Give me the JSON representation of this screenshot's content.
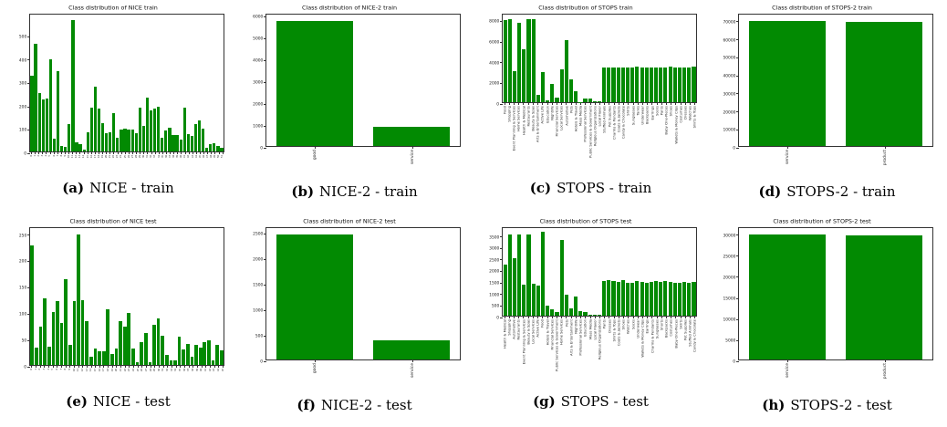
{
  "colors": {
    "bar_fill": "#028a02",
    "axis": "#333333",
    "background": "#ffffff"
  },
  "captions": [
    {
      "label": "(a)",
      "text": "NICE - train"
    },
    {
      "label": "(b)",
      "text": "NICE-2 - train"
    },
    {
      "label": "(c)",
      "text": "STOPS - train"
    },
    {
      "label": "(d)",
      "text": "STOPS-2 - train"
    },
    {
      "label": "(e)",
      "text": "NICE - test"
    },
    {
      "label": "(f)",
      "text": "NICE-2 - test"
    },
    {
      "label": "(g)",
      "text": "STOPS - test"
    },
    {
      "label": "(h)",
      "text": "STOPS-2 - test"
    }
  ],
  "chart_data": [
    {
      "type": "bar",
      "title": "Class distribution of NICE train",
      "categories": [],
      "xtick_labels_legible": false,
      "values": [
        330,
        470,
        255,
        225,
        230,
        400,
        55,
        350,
        25,
        20,
        118,
        570,
        40,
        30,
        8,
        85,
        190,
        280,
        185,
        125,
        78,
        85,
        165,
        60,
        95,
        100,
        97,
        95,
        80,
        190,
        110,
        235,
        180,
        185,
        195,
        60,
        90,
        105,
        72,
        70,
        50,
        190,
        75,
        68,
        118,
        135,
        100,
        15,
        30,
        35,
        25,
        15
      ],
      "yticks": [
        0,
        100,
        200,
        300,
        400,
        500
      ],
      "ylim": [
        0,
        595
      ],
      "grid": false,
      "legend": null
    },
    {
      "type": "bar",
      "title": "Class distribution of NICE-2 train",
      "categories": [
        "good",
        "service"
      ],
      "xtick_labels_legible": true,
      "values": [
        5800,
        880
      ],
      "yticks": [
        0,
        1000,
        2000,
        3000,
        4000,
        5000,
        6000
      ],
      "ylim": [
        0,
        6100
      ],
      "grid": false,
      "legend": null
    },
    {
      "type": "bar",
      "title": "Class distribution of STOPS train",
      "categories": [
        "Food",
        "Shopping",
        "Event Planning & Services",
        "Home Services",
        "Health & Medical",
        "Restaurants",
        "Beauty & Spas",
        "Arts & Entertainment",
        "Active Life",
        "Education",
        "Nightlife",
        "Financial Services",
        "Local Services",
        "Automotive",
        "Pets",
        "Hotels & Travel",
        "Mass Media",
        "Professional Services",
        "Public Services & Government",
        "Religious Organizations",
        "Local Flavor",
        "Stuffed Animals",
        "Pet Supplies",
        "Charms & Pendants",
        "Coats & Jackets",
        "Candy & Chocolate",
        "Shirts",
        "Sunglasses",
        "Tanks",
        "Underwear",
        "Backpacks",
        "Earrings",
        "Socks",
        "Pants",
        "Baby One-Pieces",
        "Shoes",
        "Wallets & Money Clips",
        "Costumes",
        "Dresses",
        "Watches",
        "Shirts & Tops"
      ],
      "xtick_labels_legible": true,
      "values": [
        8100,
        8200,
        3050,
        7800,
        5200,
        8200,
        8200,
        700,
        2950,
        200,
        1800,
        470,
        3250,
        6100,
        2250,
        1100,
        30,
        380,
        330,
        120,
        60,
        3460,
        3450,
        3470,
        3460,
        3450,
        3470,
        3460,
        3500,
        3450,
        3470,
        3460,
        3450,
        3470,
        3460,
        3480,
        3450,
        3460,
        3470,
        3450,
        3480
      ],
      "yticks": [
        0,
        2000,
        4000,
        6000,
        8000
      ],
      "ylim": [
        0,
        8650
      ],
      "grid": false,
      "legend": null
    },
    {
      "type": "bar",
      "title": "Class distribution of STOPS-2 train",
      "categories": [
        "service",
        "product"
      ],
      "xtick_labels_legible": true,
      "values": [
        70400,
        70100
      ],
      "yticks": [
        0,
        10000,
        20000,
        30000,
        40000,
        50000,
        60000,
        70000
      ],
      "ylim": [
        0,
        74000
      ],
      "grid": false,
      "legend": null
    },
    {
      "type": "bar",
      "title": "Class distribution of NICE test",
      "categories": [],
      "xtick_labels_legible": false,
      "values": [
        230,
        34,
        73,
        128,
        35,
        101,
        123,
        80,
        165,
        38,
        123,
        251,
        125,
        85,
        15,
        32,
        27,
        26,
        107,
        21,
        31,
        84,
        73,
        100,
        32,
        6,
        44,
        62,
        5,
        78,
        90,
        56,
        20,
        8,
        9,
        54,
        29,
        41,
        15,
        39,
        34,
        43,
        47,
        8,
        38,
        28
      ],
      "yticks": [
        0,
        50,
        100,
        150,
        200,
        250
      ],
      "ylim": [
        0,
        263
      ],
      "grid": false,
      "legend": null
    },
    {
      "type": "bar",
      "title": "Class distribution of NICE-2 test",
      "categories": [
        "good",
        "service"
      ],
      "xtick_labels_legible": true,
      "values": [
        2490,
        380
      ],
      "yticks": [
        0,
        500,
        1000,
        1500,
        2000,
        2500
      ],
      "ylim": [
        0,
        2615
      ],
      "grid": false,
      "legend": null
    },
    {
      "type": "bar",
      "title": "Class distribution of STOPS test",
      "categories": [
        "Health & Medical",
        "Shopping",
        "Automotive",
        "Restaurants",
        "Event Planning & Services",
        "Beauty & Spas",
        "Local Services",
        "Active Life",
        "Food",
        "Hotels & Travel",
        "Financial Services",
        "Public Services & Government",
        "Home Services",
        "Pets",
        "Arts & Entertainment",
        "Nightlife",
        "Professional Services",
        "Education",
        "Mass Media",
        "Local Flavor",
        "Religious Organizations",
        "Pants",
        "Dresses",
        "Shirts & Tops",
        "Coats & Jackets",
        "Shoes",
        "Watches",
        "Socks",
        "Underwear",
        "Wallets & Money Clips",
        "Earrings",
        "Charms & Pendants",
        "Sunglasses",
        "Shorts",
        "Backpacks",
        "Costumes",
        "Baby One-Pieces",
        "Skirts",
        "Pet Supplies",
        "Stuffed Animals",
        "Candy & Chocolate"
      ],
      "xtick_labels_legible": true,
      "values": [
        2250,
        3600,
        2550,
        3580,
        1375,
        3580,
        1400,
        1330,
        3700,
        430,
        300,
        180,
        3350,
        950,
        330,
        850,
        190,
        150,
        60,
        50,
        60,
        1520,
        1560,
        1540,
        1500,
        1580,
        1440,
        1450,
        1530,
        1500,
        1460,
        1500,
        1530,
        1490,
        1520,
        1480,
        1470,
        1460,
        1480,
        1440,
        1490
      ],
      "yticks": [
        0,
        500,
        1000,
        1500,
        2000,
        2500,
        3000,
        3500
      ],
      "ylim": [
        0,
        3880
      ],
      "grid": false,
      "legend": null
    },
    {
      "type": "bar",
      "title": "Class distribution of STOPS-2 test",
      "categories": [
        "service",
        "product"
      ],
      "xtick_labels_legible": true,
      "values": [
        30200,
        30000
      ],
      "yticks": [
        0,
        5000,
        10000,
        15000,
        20000,
        25000,
        30000
      ],
      "ylim": [
        0,
        31700
      ],
      "grid": false,
      "legend": null
    }
  ]
}
